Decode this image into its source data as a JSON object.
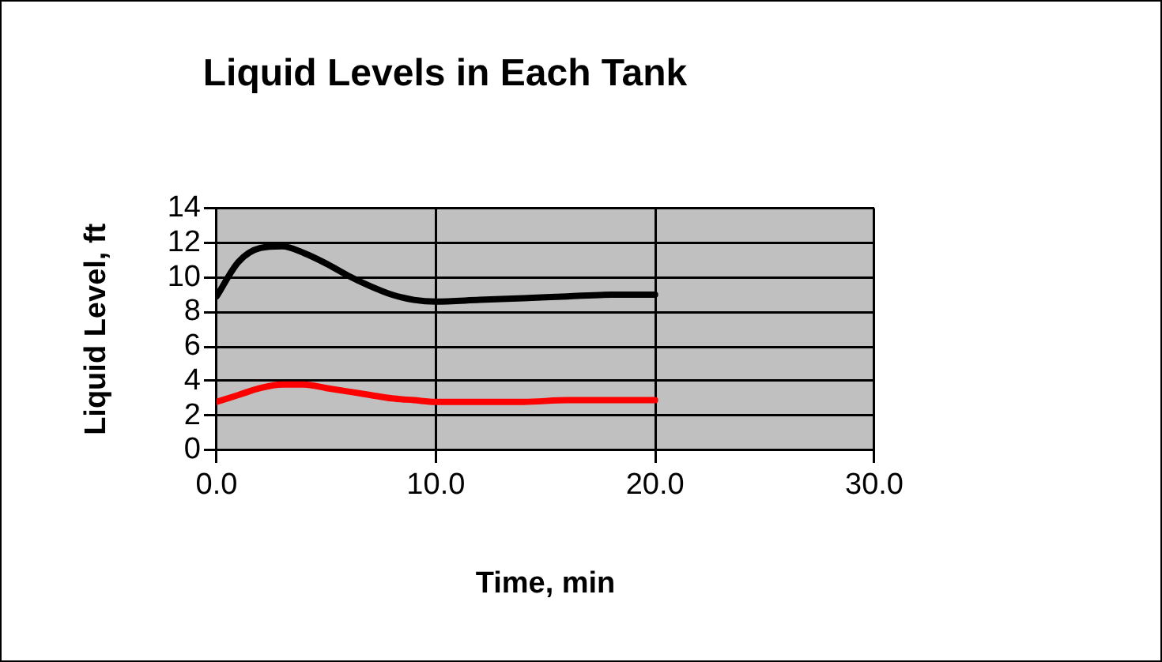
{
  "chart_data": {
    "type": "line",
    "title": "Liquid Levels in Each Tank",
    "xlabel": "Time, min",
    "ylabel": "Liquid Level, ft",
    "x": [
      0,
      1,
      2,
      3,
      4,
      5,
      6,
      7,
      8,
      9,
      10,
      12,
      14,
      16,
      18,
      20
    ],
    "series": [
      {
        "color": "#000000",
        "values": [
          8.9,
          10.9,
          11.7,
          11.8,
          11.4,
          10.8,
          10.1,
          9.5,
          9.0,
          8.7,
          8.6,
          8.7,
          8.8,
          8.9,
          9.0,
          9.0
        ]
      },
      {
        "color": "#ff0000",
        "values": [
          2.8,
          3.2,
          3.6,
          3.8,
          3.8,
          3.6,
          3.4,
          3.2,
          3.0,
          2.9,
          2.8,
          2.8,
          2.8,
          2.9,
          2.9,
          2.9
        ]
      }
    ],
    "xlim": [
      0,
      30
    ],
    "xticks": [
      {
        "value": 0,
        "label": "0.0"
      },
      {
        "value": 10,
        "label": "10.0"
      },
      {
        "value": 20,
        "label": "20.0"
      },
      {
        "value": 30,
        "label": "30.0"
      }
    ],
    "ylim": [
      0,
      14
    ],
    "yticks": [
      0,
      2,
      4,
      6,
      8,
      10,
      12,
      14
    ],
    "grid": true,
    "legend": false,
    "marker": "none",
    "line_style": "solid"
  }
}
